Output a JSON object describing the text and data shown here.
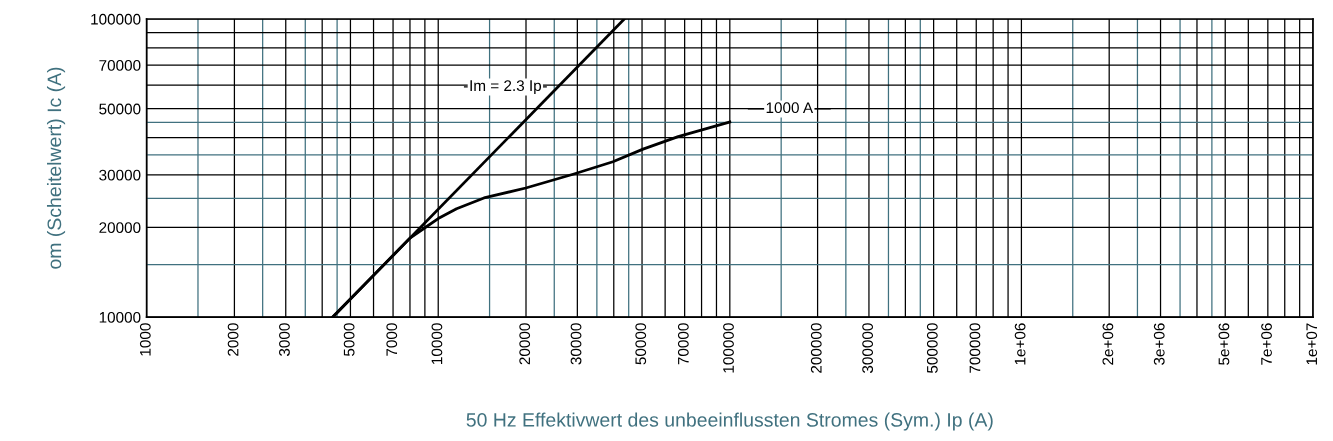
{
  "chart_data": {
    "type": "line",
    "xlabel": "50 Hz Effektivwert des unbeeinflussten Stromes (Sym.) Ip (A)",
    "ylabel": "om (Scheitelwert) Ic (A)",
    "log": "xy",
    "grid": true,
    "legend": false,
    "marker": "none",
    "line_style": "solid",
    "xlim": [
      1000,
      10000000
    ],
    "ylim": [
      10000,
      100000
    ],
    "xticks": [
      {
        "value": 1500,
        "label": null
      },
      {
        "value": 2500,
        "label": null
      },
      {
        "value": 3500,
        "label": null
      },
      {
        "value": 4500,
        "label": null
      },
      {
        "value": 15000,
        "label": null
      },
      {
        "value": 25000,
        "label": null
      },
      {
        "value": 35000,
        "label": null
      },
      {
        "value": 45000,
        "label": null
      },
      {
        "value": 150000,
        "label": null
      },
      {
        "value": 250000,
        "label": null
      },
      {
        "value": 350000,
        "label": null
      },
      {
        "value": 450000,
        "label": null
      },
      {
        "value": 1500000,
        "label": null
      },
      {
        "value": 2500000,
        "label": null
      },
      {
        "value": 3500000,
        "label": null
      },
      {
        "value": 4500000,
        "label": null
      },
      1000,
      2000,
      3000,
      5000,
      7000,
      10000,
      20000,
      30000,
      50000,
      70000,
      100000,
      200000,
      300000,
      500000,
      700000,
      {
        "value": 1000000,
        "label": "1e+06"
      },
      {
        "value": 2000000,
        "label": "2e+06"
      },
      {
        "value": 3000000,
        "label": "3e+06"
      },
      {
        "value": 5000000,
        "label": "5e+06"
      },
      {
        "value": 7000000,
        "label": "7e+06"
      },
      {
        "value": 10000000,
        "label": "1e+07"
      }
    ],
    "yticks": [
      {
        "value": 15000,
        "label": null
      },
      {
        "value": 25000,
        "label": null
      },
      {
        "value": 35000,
        "label": null
      },
      {
        "value": 45000,
        "label": null
      },
      10000,
      20000,
      30000,
      50000,
      70000,
      100000
    ],
    "series": [
      {
        "name": "Im = 2.3 Ip",
        "color": "#000000",
        "x": [
          4348,
          43478
        ],
        "values": [
          10000,
          100000
        ]
      },
      {
        "name": "1000 A",
        "color": "#000000",
        "x": [
          4348,
          6000,
          8000,
          8977,
          10000,
          11560,
          14350,
          19970,
          29200,
          39720,
          50400,
          66500,
          100000
        ],
        "values": [
          10000,
          13800,
          18400,
          19900,
          21400,
          23100,
          25100,
          27100,
          30200,
          33200,
          36600,
          40300,
          45100
        ]
      }
    ]
  }
}
